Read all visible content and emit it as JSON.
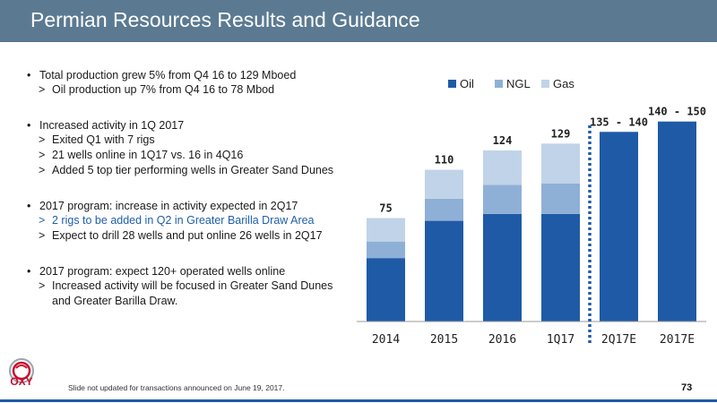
{
  "header": {
    "title": "Permian Resources Results and Guidance"
  },
  "bullets": [
    {
      "type": "main",
      "text": "Total production grew 5% from Q4 16 to 129 Mboed"
    },
    {
      "type": "sub",
      "text": "Oil production up 7% from Q4 16 to 78 Mbod"
    },
    {
      "type": "gap"
    },
    {
      "type": "main",
      "text": "Increased activity in 1Q 2017"
    },
    {
      "type": "sub",
      "text": "Exited Q1 with 7 rigs"
    },
    {
      "type": "sub",
      "text": "21 wells online in 1Q17 vs. 16 in 4Q16"
    },
    {
      "type": "sub",
      "text": "Added 5 top tier performing wells in Greater Sand Dunes"
    },
    {
      "type": "gap"
    },
    {
      "type": "main",
      "text": "2017 program: increase in activity expected in 2Q17"
    },
    {
      "type": "sub",
      "text": "2 rigs to be added in Q2 in Greater Barilla Draw Area",
      "highlight": true
    },
    {
      "type": "sub",
      "text": "Expect to drill 28 wells and put online 26 wells in 2Q17"
    },
    {
      "type": "gap"
    },
    {
      "type": "main",
      "text": "2017 program: expect 120+ operated wells online"
    },
    {
      "type": "sub",
      "text": "Increased activity will be focused in Greater Sand Dunes and Greater Barilla Draw."
    }
  ],
  "sub_marker": ">",
  "chart_data": {
    "type": "bar",
    "stacked": true,
    "categories": [
      "2014",
      "2015",
      "2016",
      "1Q17",
      "2Q17E",
      "2017E"
    ],
    "series": [
      {
        "name": "Oil",
        "color": "#1f5aa6",
        "values": [
          46,
          73,
          78,
          78,
          137.5,
          145
        ]
      },
      {
        "name": "NGL",
        "color": "#8fb0d6",
        "values": [
          12,
          16,
          21,
          22,
          0,
          0
        ]
      },
      {
        "name": "Gas",
        "color": "#c0d3e8",
        "values": [
          17,
          21,
          25,
          29,
          0,
          0
        ]
      }
    ],
    "total_labels": [
      "75",
      "110",
      "124",
      "129",
      "135 - 140",
      "140 - 150"
    ],
    "ylim": [
      0,
      150
    ],
    "legend_position": "top",
    "divider_after": "1Q17",
    "divider_style": "dotted"
  },
  "footer": {
    "note": "Slide not updated for transactions announced on June 19, 2017.",
    "page": "73"
  },
  "logo": {
    "text": "OXY",
    "color": "#c8102e"
  }
}
